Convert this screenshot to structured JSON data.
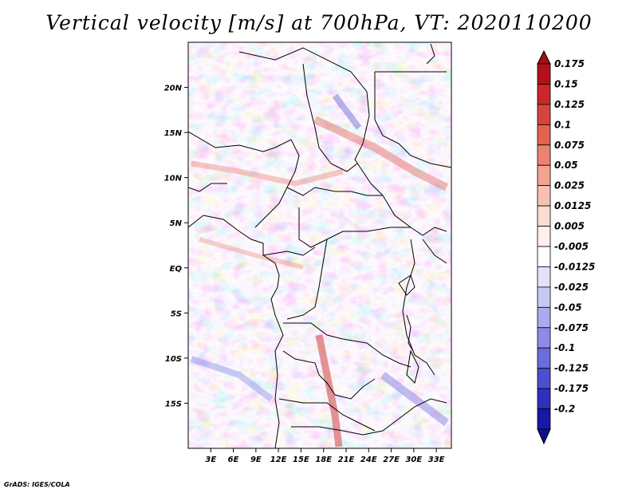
{
  "title": "Vertical velocity [m/s] at 700hPa, VT: 2020110200",
  "credit": "GrADS: IGES/COLA",
  "map": {
    "lon_range": [
      0,
      35
    ],
    "lat_range": [
      -20,
      25
    ],
    "lat_ticks": [
      {
        "lat": 20,
        "label": "20N"
      },
      {
        "lat": 15,
        "label": "15N"
      },
      {
        "lat": 10,
        "label": "10N"
      },
      {
        "lat": 5,
        "label": "5N"
      },
      {
        "lat": 0,
        "label": "EQ"
      },
      {
        "lat": -5,
        "label": "5S"
      },
      {
        "lat": -10,
        "label": "10S"
      },
      {
        "lat": -15,
        "label": "15S"
      }
    ],
    "lon_ticks": [
      {
        "lon": 3,
        "label": "3E"
      },
      {
        "lon": 6,
        "label": "6E"
      },
      {
        "lon": 9,
        "label": "9E"
      },
      {
        "lon": 12,
        "label": "12E"
      },
      {
        "lon": 15,
        "label": "15E"
      },
      {
        "lon": 18,
        "label": "18E"
      },
      {
        "lon": 21,
        "label": "21E"
      },
      {
        "lon": 24,
        "label": "24E"
      },
      {
        "lon": 27,
        "label": "27E"
      },
      {
        "lon": 30,
        "label": "30E"
      },
      {
        "lon": 33,
        "label": "33E"
      }
    ]
  },
  "colorbar": {
    "levels": [
      {
        "label": "0.175",
        "color": "#b5101a"
      },
      {
        "label": "0.15",
        "color": "#c8282a"
      },
      {
        "label": "0.125",
        "color": "#d8443c"
      },
      {
        "label": "0.1",
        "color": "#e46250"
      },
      {
        "label": "0.075",
        "color": "#ec8270"
      },
      {
        "label": "0.05",
        "color": "#f4a292"
      },
      {
        "label": "0.025",
        "color": "#f8c0b4"
      },
      {
        "label": "0.0125",
        "color": "#fcdcd4"
      },
      {
        "label": "0.005",
        "color": "#fff0ee"
      },
      {
        "label": "-0.005",
        "color": "#ffffff"
      },
      {
        "label": "-0.0125",
        "color": "#e2e2fa"
      },
      {
        "label": "-0.025",
        "color": "#c8c8f4"
      },
      {
        "label": "-0.05",
        "color": "#aaaaee"
      },
      {
        "label": "-0.075",
        "color": "#8c8ce6"
      },
      {
        "label": "-0.1",
        "color": "#6c6cdc"
      },
      {
        "label": "-0.125",
        "color": "#4e4ed0"
      },
      {
        "label": "-0.175",
        "color": "#3030c0"
      },
      {
        "label": "-0.2",
        "color": "#1818a8"
      }
    ],
    "top_color": "#a01010",
    "bottom_color": "#10108c"
  }
}
